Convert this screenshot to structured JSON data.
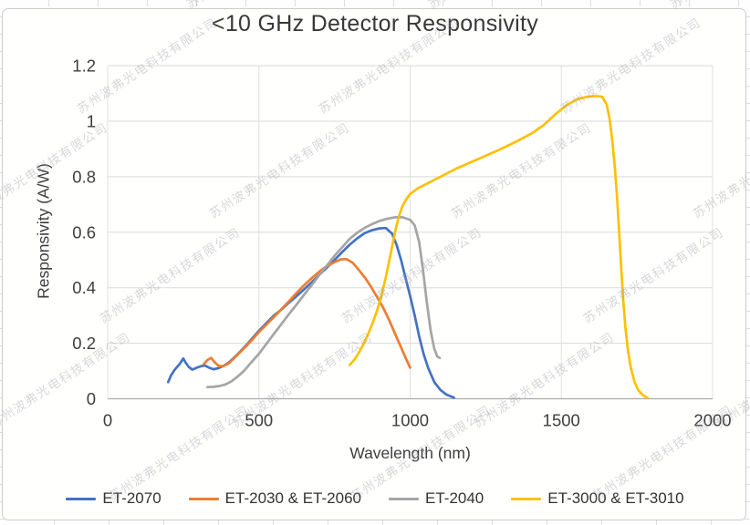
{
  "watermark": {
    "text": "苏州波弗光电科技有限公司"
  },
  "chart_data": {
    "type": "line",
    "title": "<10 GHz Detector Responsivity",
    "xlabel": "Wavelength (nm)",
    "ylabel": "Responsivity (A/W)",
    "xlim": [
      0,
      2000
    ],
    "ylim": [
      0,
      1.2
    ],
    "x_ticks": [
      0,
      500,
      1000,
      1500,
      2000
    ],
    "x_tick_labels": [
      "0",
      "500",
      "1000",
      "1500",
      "2000"
    ],
    "y_ticks": [
      0,
      0.2,
      0.4,
      0.6,
      0.8,
      1.0,
      1.2
    ],
    "y_tick_labels": [
      "0",
      "0.2",
      "0.4",
      "0.6",
      "0.8",
      "1",
      "1.2"
    ],
    "grid": true,
    "legend_position": "bottom",
    "series": [
      {
        "name": "ET-2070",
        "color": "#4472C4",
        "points": [
          [
            200,
            0.06
          ],
          [
            210,
            0.085
          ],
          [
            222,
            0.105
          ],
          [
            238,
            0.125
          ],
          [
            250,
            0.145
          ],
          [
            258,
            0.13
          ],
          [
            268,
            0.115
          ],
          [
            280,
            0.105
          ],
          [
            295,
            0.112
          ],
          [
            310,
            0.118
          ],
          [
            322,
            0.12
          ],
          [
            335,
            0.112
          ],
          [
            350,
            0.106
          ],
          [
            365,
            0.11
          ],
          [
            382,
            0.118
          ],
          [
            400,
            0.13
          ],
          [
            420,
            0.15
          ],
          [
            440,
            0.172
          ],
          [
            460,
            0.195
          ],
          [
            480,
            0.22
          ],
          [
            500,
            0.245
          ],
          [
            525,
            0.273
          ],
          [
            550,
            0.3
          ],
          [
            575,
            0.322
          ],
          [
            600,
            0.347
          ],
          [
            625,
            0.37
          ],
          [
            650,
            0.395
          ],
          [
            675,
            0.42
          ],
          [
            700,
            0.447
          ],
          [
            725,
            0.473
          ],
          [
            750,
            0.5
          ],
          [
            775,
            0.528
          ],
          [
            800,
            0.555
          ],
          [
            825,
            0.578
          ],
          [
            850,
            0.597
          ],
          [
            875,
            0.608
          ],
          [
            900,
            0.614
          ],
          [
            920,
            0.615
          ],
          [
            940,
            0.595
          ],
          [
            955,
            0.555
          ],
          [
            970,
            0.5
          ],
          [
            985,
            0.435
          ],
          [
            1000,
            0.37
          ],
          [
            1015,
            0.3
          ],
          [
            1030,
            0.225
          ],
          [
            1045,
            0.16
          ],
          [
            1060,
            0.11
          ],
          [
            1080,
            0.06
          ],
          [
            1100,
            0.032
          ],
          [
            1120,
            0.015
          ],
          [
            1145,
            0.004
          ]
        ]
      },
      {
        "name": "ET-2030 & ET-2060",
        "color": "#ED7D31",
        "points": [
          [
            318,
            0.125
          ],
          [
            330,
            0.14
          ],
          [
            342,
            0.147
          ],
          [
            355,
            0.13
          ],
          [
            368,
            0.118
          ],
          [
            382,
            0.118
          ],
          [
            400,
            0.127
          ],
          [
            420,
            0.148
          ],
          [
            440,
            0.17
          ],
          [
            460,
            0.192
          ],
          [
            480,
            0.215
          ],
          [
            500,
            0.24
          ],
          [
            525,
            0.267
          ],
          [
            550,
            0.295
          ],
          [
            575,
            0.323
          ],
          [
            600,
            0.352
          ],
          [
            625,
            0.382
          ],
          [
            650,
            0.41
          ],
          [
            675,
            0.435
          ],
          [
            700,
            0.458
          ],
          [
            725,
            0.478
          ],
          [
            750,
            0.492
          ],
          [
            770,
            0.502
          ],
          [
            790,
            0.503
          ],
          [
            810,
            0.49
          ],
          [
            830,
            0.465
          ],
          [
            850,
            0.437
          ],
          [
            870,
            0.405
          ],
          [
            890,
            0.368
          ],
          [
            910,
            0.33
          ],
          [
            930,
            0.285
          ],
          [
            950,
            0.235
          ],
          [
            970,
            0.185
          ],
          [
            985,
            0.148
          ],
          [
            1000,
            0.112
          ]
        ]
      },
      {
        "name": "ET-2040",
        "color": "#A5A5A5",
        "points": [
          [
            330,
            0.042
          ],
          [
            350,
            0.043
          ],
          [
            370,
            0.046
          ],
          [
            390,
            0.052
          ],
          [
            410,
            0.063
          ],
          [
            430,
            0.08
          ],
          [
            450,
            0.1
          ],
          [
            470,
            0.125
          ],
          [
            500,
            0.162
          ],
          [
            525,
            0.198
          ],
          [
            550,
            0.234
          ],
          [
            575,
            0.27
          ],
          [
            600,
            0.306
          ],
          [
            625,
            0.34
          ],
          [
            650,
            0.376
          ],
          [
            675,
            0.41
          ],
          [
            700,
            0.446
          ],
          [
            725,
            0.48
          ],
          [
            750,
            0.515
          ],
          [
            775,
            0.545
          ],
          [
            800,
            0.576
          ],
          [
            825,
            0.598
          ],
          [
            850,
            0.616
          ],
          [
            875,
            0.63
          ],
          [
            900,
            0.641
          ],
          [
            925,
            0.649
          ],
          [
            950,
            0.654
          ],
          [
            975,
            0.654
          ],
          [
            1000,
            0.645
          ],
          [
            1015,
            0.625
          ],
          [
            1030,
            0.565
          ],
          [
            1042,
            0.47
          ],
          [
            1055,
            0.35
          ],
          [
            1068,
            0.245
          ],
          [
            1080,
            0.18
          ],
          [
            1090,
            0.152
          ],
          [
            1098,
            0.147
          ]
        ]
      },
      {
        "name": "ET-3000 & ET-3010",
        "color": "#FFC000",
        "points": [
          [
            800,
            0.122
          ],
          [
            815,
            0.14
          ],
          [
            830,
            0.165
          ],
          [
            845,
            0.195
          ],
          [
            860,
            0.23
          ],
          [
            875,
            0.27
          ],
          [
            890,
            0.315
          ],
          [
            905,
            0.37
          ],
          [
            920,
            0.44
          ],
          [
            935,
            0.52
          ],
          [
            950,
            0.6
          ],
          [
            962,
            0.655
          ],
          [
            975,
            0.695
          ],
          [
            988,
            0.72
          ],
          [
            1000,
            0.738
          ],
          [
            1025,
            0.758
          ],
          [
            1050,
            0.772
          ],
          [
            1100,
            0.8
          ],
          [
            1150,
            0.828
          ],
          [
            1200,
            0.852
          ],
          [
            1250,
            0.876
          ],
          [
            1300,
            0.9
          ],
          [
            1350,
            0.926
          ],
          [
            1400,
            0.955
          ],
          [
            1440,
            0.985
          ],
          [
            1480,
            1.025
          ],
          [
            1520,
            1.06
          ],
          [
            1555,
            1.08
          ],
          [
            1585,
            1.088
          ],
          [
            1615,
            1.091
          ],
          [
            1635,
            1.088
          ],
          [
            1650,
            1.06
          ],
          [
            1660,
            1.005
          ],
          [
            1668,
            0.935
          ],
          [
            1676,
            0.845
          ],
          [
            1684,
            0.73
          ],
          [
            1691,
            0.6
          ],
          [
            1698,
            0.47
          ],
          [
            1705,
            0.35
          ],
          [
            1712,
            0.255
          ],
          [
            1720,
            0.175
          ],
          [
            1730,
            0.11
          ],
          [
            1742,
            0.06
          ],
          [
            1755,
            0.03
          ],
          [
            1770,
            0.012
          ],
          [
            1785,
            0.003
          ]
        ]
      }
    ]
  }
}
